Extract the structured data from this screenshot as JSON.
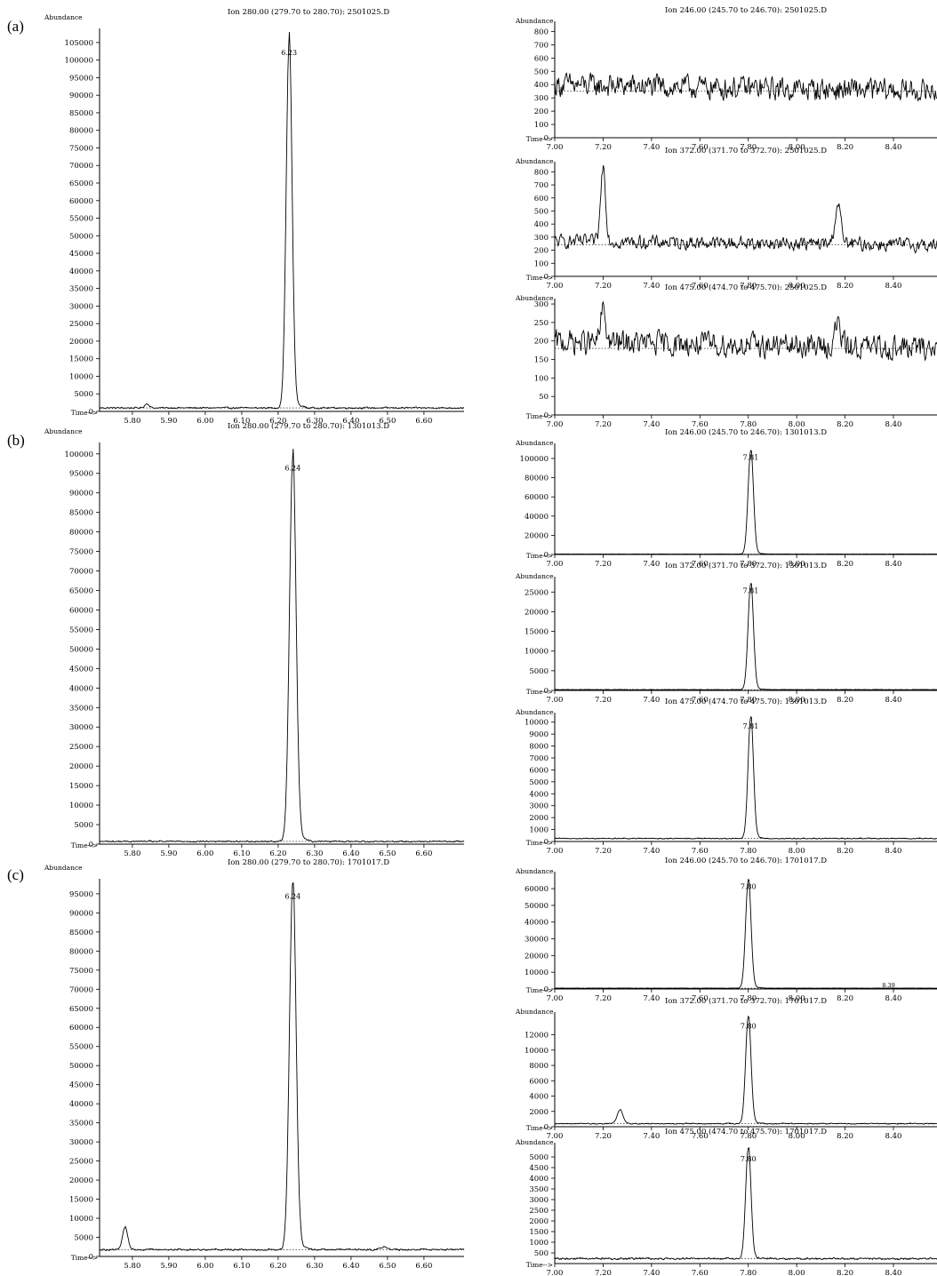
{
  "panel_labels": [
    "(a)",
    "(b)",
    "(c)"
  ],
  "common": {
    "y_label": "Abundance",
    "x_label": "Time-->"
  },
  "chart_data": [
    {
      "id": "a-280",
      "type": "line",
      "title": "Ion 280.00 (279.70 to 280.70): 2501025.D",
      "xlim": [
        5.71,
        6.71
      ],
      "ylim": [
        0,
        108000
      ],
      "xticks": [
        5.8,
        5.9,
        6.0,
        6.1,
        6.2,
        6.3,
        6.4,
        6.5,
        6.6
      ],
      "yticks": [
        0,
        5000,
        10000,
        15000,
        20000,
        25000,
        30000,
        35000,
        40000,
        45000,
        50000,
        55000,
        60000,
        65000,
        70000,
        75000,
        80000,
        85000,
        90000,
        95000,
        100000,
        105000
      ],
      "baseline": 1000,
      "noise": 300,
      "peaks": [
        {
          "x": 6.23,
          "height": 104000,
          "width": 0.008,
          "label": "6.23"
        },
        {
          "x": 5.84,
          "height": 1200,
          "width": 0.006
        }
      ]
    },
    {
      "id": "a-246",
      "type": "line",
      "title": "Ion 246.00 (245.70 to 246.70): 2501025.D",
      "xlim": [
        7.0,
        8.58
      ],
      "ylim": [
        0,
        850
      ],
      "xticks": [
        7.0,
        7.2,
        7.4,
        7.6,
        7.8,
        8.0,
        8.2,
        8.4
      ],
      "yticks": [
        0,
        100,
        200,
        300,
        400,
        500,
        600,
        700,
        800
      ],
      "baseline": 350,
      "noise": 120,
      "peaks": []
    },
    {
      "id": "a-372",
      "type": "line",
      "title": "Ion 372.00 (371.70 to 372.70): 2501025.D",
      "xlim": [
        7.0,
        8.58
      ],
      "ylim": [
        0,
        850
      ],
      "xticks": [
        7.0,
        7.2,
        7.4,
        7.6,
        7.8,
        8.0,
        8.2,
        8.4
      ],
      "yticks": [
        0,
        100,
        200,
        300,
        400,
        500,
        600,
        700,
        800
      ],
      "baseline": 240,
      "noise": 70,
      "peaks": [
        {
          "x": 7.2,
          "height": 580,
          "width": 0.01
        },
        {
          "x": 8.17,
          "height": 300,
          "width": 0.012
        }
      ]
    },
    {
      "id": "a-475",
      "type": "line",
      "title": "Ion 475.00 (474.70 to 475.70): 2501025.D",
      "xlim": [
        7.0,
        8.58
      ],
      "ylim": [
        0,
        305
      ],
      "xticks": [
        7.0,
        7.2,
        7.4,
        7.6,
        7.8,
        8.0,
        8.2,
        8.4
      ],
      "yticks": [
        0,
        50,
        100,
        150,
        200,
        250,
        300
      ],
      "baseline": 180,
      "noise": 45,
      "peaks": [
        {
          "x": 7.2,
          "height": 90,
          "width": 0.01
        },
        {
          "x": 8.17,
          "height": 60,
          "width": 0.012
        }
      ]
    },
    {
      "id": "b-280",
      "type": "line",
      "title": "Ion 280.00 (279.70 to 280.70): 1301013.D",
      "xlim": [
        5.71,
        6.71
      ],
      "ylim": [
        0,
        102000
      ],
      "xticks": [
        5.8,
        5.9,
        6.0,
        6.1,
        6.2,
        6.3,
        6.4,
        6.5,
        6.6
      ],
      "yticks": [
        0,
        5000,
        10000,
        15000,
        20000,
        25000,
        30000,
        35000,
        40000,
        45000,
        50000,
        55000,
        60000,
        65000,
        70000,
        75000,
        80000,
        85000,
        90000,
        95000,
        100000
      ],
      "baseline": 700,
      "noise": 250,
      "peaks": [
        {
          "x": 6.24,
          "height": 98000,
          "width": 0.009,
          "label": "6.24"
        }
      ]
    },
    {
      "id": "b-246",
      "type": "line",
      "title": "Ion 246.00 (245.70 to 246.70): 1301013.D",
      "xlim": [
        7.0,
        8.58
      ],
      "ylim": [
        0,
        112000
      ],
      "xticks": [
        7.0,
        7.2,
        7.4,
        7.6,
        7.8,
        8.0,
        8.2,
        8.4
      ],
      "yticks": [
        0,
        20000,
        40000,
        60000,
        80000,
        100000
      ],
      "baseline": 400,
      "noise": 150,
      "peaks": [
        {
          "x": 7.81,
          "height": 108000,
          "width": 0.011,
          "label": "7.81"
        }
      ]
    },
    {
      "id": "b-372",
      "type": "line",
      "title": "Ion 372.00 (371.70 to 372.70): 1301013.D",
      "xlim": [
        7.0,
        8.58
      ],
      "ylim": [
        0,
        28000
      ],
      "xticks": [
        7.0,
        7.2,
        7.4,
        7.6,
        7.8,
        8.0,
        8.2,
        8.4
      ],
      "yticks": [
        0,
        5000,
        10000,
        15000,
        20000,
        25000
      ],
      "baseline": 200,
      "noise": 80,
      "peaks": [
        {
          "x": 7.81,
          "height": 27000,
          "width": 0.011,
          "label": "7.81"
        }
      ]
    },
    {
      "id": "b-475",
      "type": "line",
      "title": "Ion 475.00 (474.70 to 475.70): 1301013.D",
      "xlim": [
        7.0,
        8.58
      ],
      "ylim": [
        0,
        10500
      ],
      "xticks": [
        7.0,
        7.2,
        7.4,
        7.6,
        7.8,
        8.0,
        8.2,
        8.4
      ],
      "yticks": [
        0,
        1000,
        2000,
        3000,
        4000,
        5000,
        6000,
        7000,
        8000,
        9000,
        10000
      ],
      "baseline": 250,
      "noise": 60,
      "peaks": [
        {
          "x": 7.81,
          "height": 10200,
          "width": 0.011,
          "label": "7.81"
        }
      ]
    },
    {
      "id": "c-280",
      "type": "line",
      "title": "Ion 280.00 (279.70 to 280.70): 1701017.D",
      "xlim": [
        5.71,
        6.71
      ],
      "ylim": [
        0,
        98000
      ],
      "xticks": [
        5.8,
        5.9,
        6.0,
        6.1,
        6.2,
        6.3,
        6.4,
        6.5,
        6.6
      ],
      "yticks": [
        0,
        5000,
        10000,
        15000,
        20000,
        25000,
        30000,
        35000,
        40000,
        45000,
        50000,
        55000,
        60000,
        65000,
        70000,
        75000,
        80000,
        85000,
        90000,
        95000
      ],
      "baseline": 1800,
      "noise": 300,
      "peaks": [
        {
          "x": 6.24,
          "height": 96000,
          "width": 0.009,
          "label": "6.24"
        },
        {
          "x": 5.78,
          "height": 5800,
          "width": 0.007
        },
        {
          "x": 6.49,
          "height": 800,
          "width": 0.008
        }
      ]
    },
    {
      "id": "c-246",
      "type": "line",
      "title": "Ion 246.00 (245.70 to 246.70): 1701017.D",
      "xlim": [
        7.0,
        8.58
      ],
      "ylim": [
        0,
        68000
      ],
      "xticks": [
        7.0,
        7.2,
        7.4,
        7.6,
        7.8,
        8.0,
        8.2,
        8.4
      ],
      "yticks": [
        0,
        10000,
        20000,
        30000,
        40000,
        50000,
        60000
      ],
      "baseline": 500,
      "noise": 150,
      "peaks": [
        {
          "x": 7.8,
          "height": 65000,
          "width": 0.011,
          "label": "7.80"
        }
      ],
      "annotations": [
        {
          "x": 8.38,
          "text": "8.39"
        }
      ]
    },
    {
      "id": "c-372",
      "type": "line",
      "title": "Ion 372.00 (371.70 to 372.70): 1701017.D",
      "xlim": [
        7.0,
        8.58
      ],
      "ylim": [
        0,
        14500
      ],
      "xticks": [
        7.0,
        7.2,
        7.4,
        7.6,
        7.8,
        8.0,
        8.2,
        8.4
      ],
      "yticks": [
        0,
        2000,
        4000,
        6000,
        8000,
        10000,
        12000
      ],
      "baseline": 400,
      "noise": 90,
      "peaks": [
        {
          "x": 7.8,
          "height": 14000,
          "width": 0.011,
          "label": "7.80"
        },
        {
          "x": 7.27,
          "height": 1800,
          "width": 0.012
        }
      ]
    },
    {
      "id": "c-475",
      "type": "line",
      "title": "Ion 475.00 (474.70 to 475.70): 1701017.D",
      "xlim": [
        7.0,
        8.58
      ],
      "ylim": [
        0,
        5500
      ],
      "xticks": [
        7.0,
        7.2,
        7.4,
        7.6,
        7.8,
        8.0,
        8.2,
        8.4
      ],
      "yticks": [
        500,
        1000,
        1500,
        2000,
        2500,
        3000,
        3500,
        4000,
        4500,
        5000
      ],
      "baseline": 230,
      "noise": 60,
      "peaks": [
        {
          "x": 7.8,
          "height": 5200,
          "width": 0.011,
          "label": "7.80"
        }
      ]
    }
  ]
}
